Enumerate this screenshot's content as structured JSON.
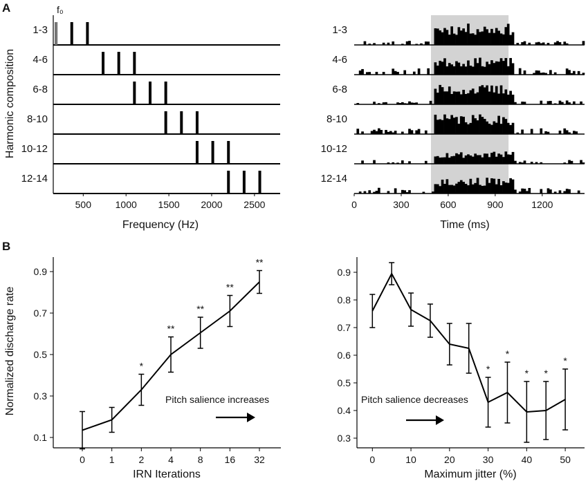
{
  "panel_labels": {
    "a": "A",
    "b": "B"
  },
  "chart_data": [
    {
      "id": "harmonics",
      "type": "bar",
      "title": "",
      "ylabel": "Harmonic composition",
      "xlabel": "Frequency (Hz)",
      "xlim": [
        150,
        2800
      ],
      "xticks": [
        500,
        1000,
        1500,
        2000,
        2500
      ],
      "xtick_labels": [
        "500",
        "1000",
        "1500",
        "2000",
        "2500"
      ],
      "f0_label": "f₀",
      "f0": 183,
      "rows": [
        {
          "label": "1-3",
          "harmonics": [
            1,
            2,
            3
          ]
        },
        {
          "label": "4-6",
          "harmonics": [
            4,
            5,
            6
          ]
        },
        {
          "label": "6-8",
          "harmonics": [
            6,
            7,
            8
          ]
        },
        {
          "label": "8-10",
          "harmonics": [
            8,
            9,
            10
          ]
        },
        {
          "label": "10-12",
          "harmonics": [
            10,
            11,
            12
          ]
        },
        {
          "label": "12-14",
          "harmonics": [
            12,
            13,
            14
          ]
        }
      ],
      "colors": {
        "f0": "#777777",
        "line": "#000000"
      }
    },
    {
      "id": "psth",
      "type": "bar",
      "xlabel": "Time (ms)",
      "xlim": [
        0,
        1470
      ],
      "xticks": [
        0,
        300,
        600,
        900,
        1200
      ],
      "xtick_labels": [
        "0",
        "300",
        "600",
        "900",
        "1200"
      ],
      "stimulus_window": [
        490,
        985
      ],
      "bin_ms": 15,
      "rows": [
        {
          "label": "1-3",
          "stim_level": 0.78,
          "base_level": 0.13,
          "seed": 11
        },
        {
          "label": "4-6",
          "stim_level": 0.62,
          "base_level": 0.2,
          "seed": 23
        },
        {
          "label": "6-8",
          "stim_level": 0.72,
          "base_level": 0.12,
          "seed": 37
        },
        {
          "label": "8-10",
          "stim_level": 0.72,
          "base_level": 0.18,
          "seed": 41
        },
        {
          "label": "10-12",
          "stim_level": 0.45,
          "base_level": 0.13,
          "seed": 53
        },
        {
          "label": "12-14",
          "stim_level": 0.58,
          "base_level": 0.18,
          "seed": 67
        }
      ],
      "colors": {
        "shade": "#d3d3d3",
        "bars": "#000000"
      }
    },
    {
      "id": "irn",
      "type": "line",
      "xlabel": "IRN Iterations",
      "ylabel": "Normalized discharge rate",
      "categories": [
        "0",
        "1",
        "2",
        "4",
        "8",
        "16",
        "32"
      ],
      "values": [
        0.135,
        0.185,
        0.33,
        0.5,
        0.605,
        0.71,
        0.85
      ],
      "errors": [
        0.09,
        0.06,
        0.075,
        0.085,
        0.075,
        0.075,
        0.055
      ],
      "significance": [
        "",
        "",
        "*",
        "**",
        "**",
        "**",
        "**"
      ],
      "ylim": [
        0.05,
        0.97
      ],
      "yticks": [
        0.1,
        0.3,
        0.5,
        0.7,
        0.9
      ],
      "ytick_labels": [
        "0.1",
        "0.3",
        "0.5",
        "0.7",
        "0.9"
      ],
      "annotation": "Pitch salience increases",
      "arrow": "right"
    },
    {
      "id": "jitter",
      "type": "line",
      "xlabel": "Maximum jitter (%)",
      "ylabel": "",
      "x": [
        0,
        5,
        10,
        15,
        20,
        25,
        30,
        35,
        40,
        45,
        50
      ],
      "values": [
        0.76,
        0.895,
        0.765,
        0.725,
        0.64,
        0.625,
        0.43,
        0.465,
        0.395,
        0.4,
        0.44
      ],
      "errors": [
        0.06,
        0.04,
        0.06,
        0.06,
        0.075,
        0.09,
        0.09,
        0.11,
        0.11,
        0.105,
        0.11
      ],
      "significance": [
        "",
        "",
        "",
        "",
        "",
        "",
        "*",
        "*",
        "*",
        "*",
        "*"
      ],
      "xlim": [
        -4,
        55
      ],
      "xticks": [
        0,
        10,
        20,
        30,
        40,
        50
      ],
      "xtick_labels": [
        "0",
        "10",
        "20",
        "30",
        "40",
        "50"
      ],
      "ylim": [
        0.265,
        0.955
      ],
      "yticks": [
        0.3,
        0.4,
        0.5,
        0.6,
        0.7,
        0.8,
        0.9
      ],
      "ytick_labels": [
        "0.3",
        "0.4",
        "0.5",
        "0.6",
        "0.7",
        "0.8",
        "0.9"
      ],
      "annotation": "Pitch salience decreases",
      "arrow": "right"
    }
  ]
}
